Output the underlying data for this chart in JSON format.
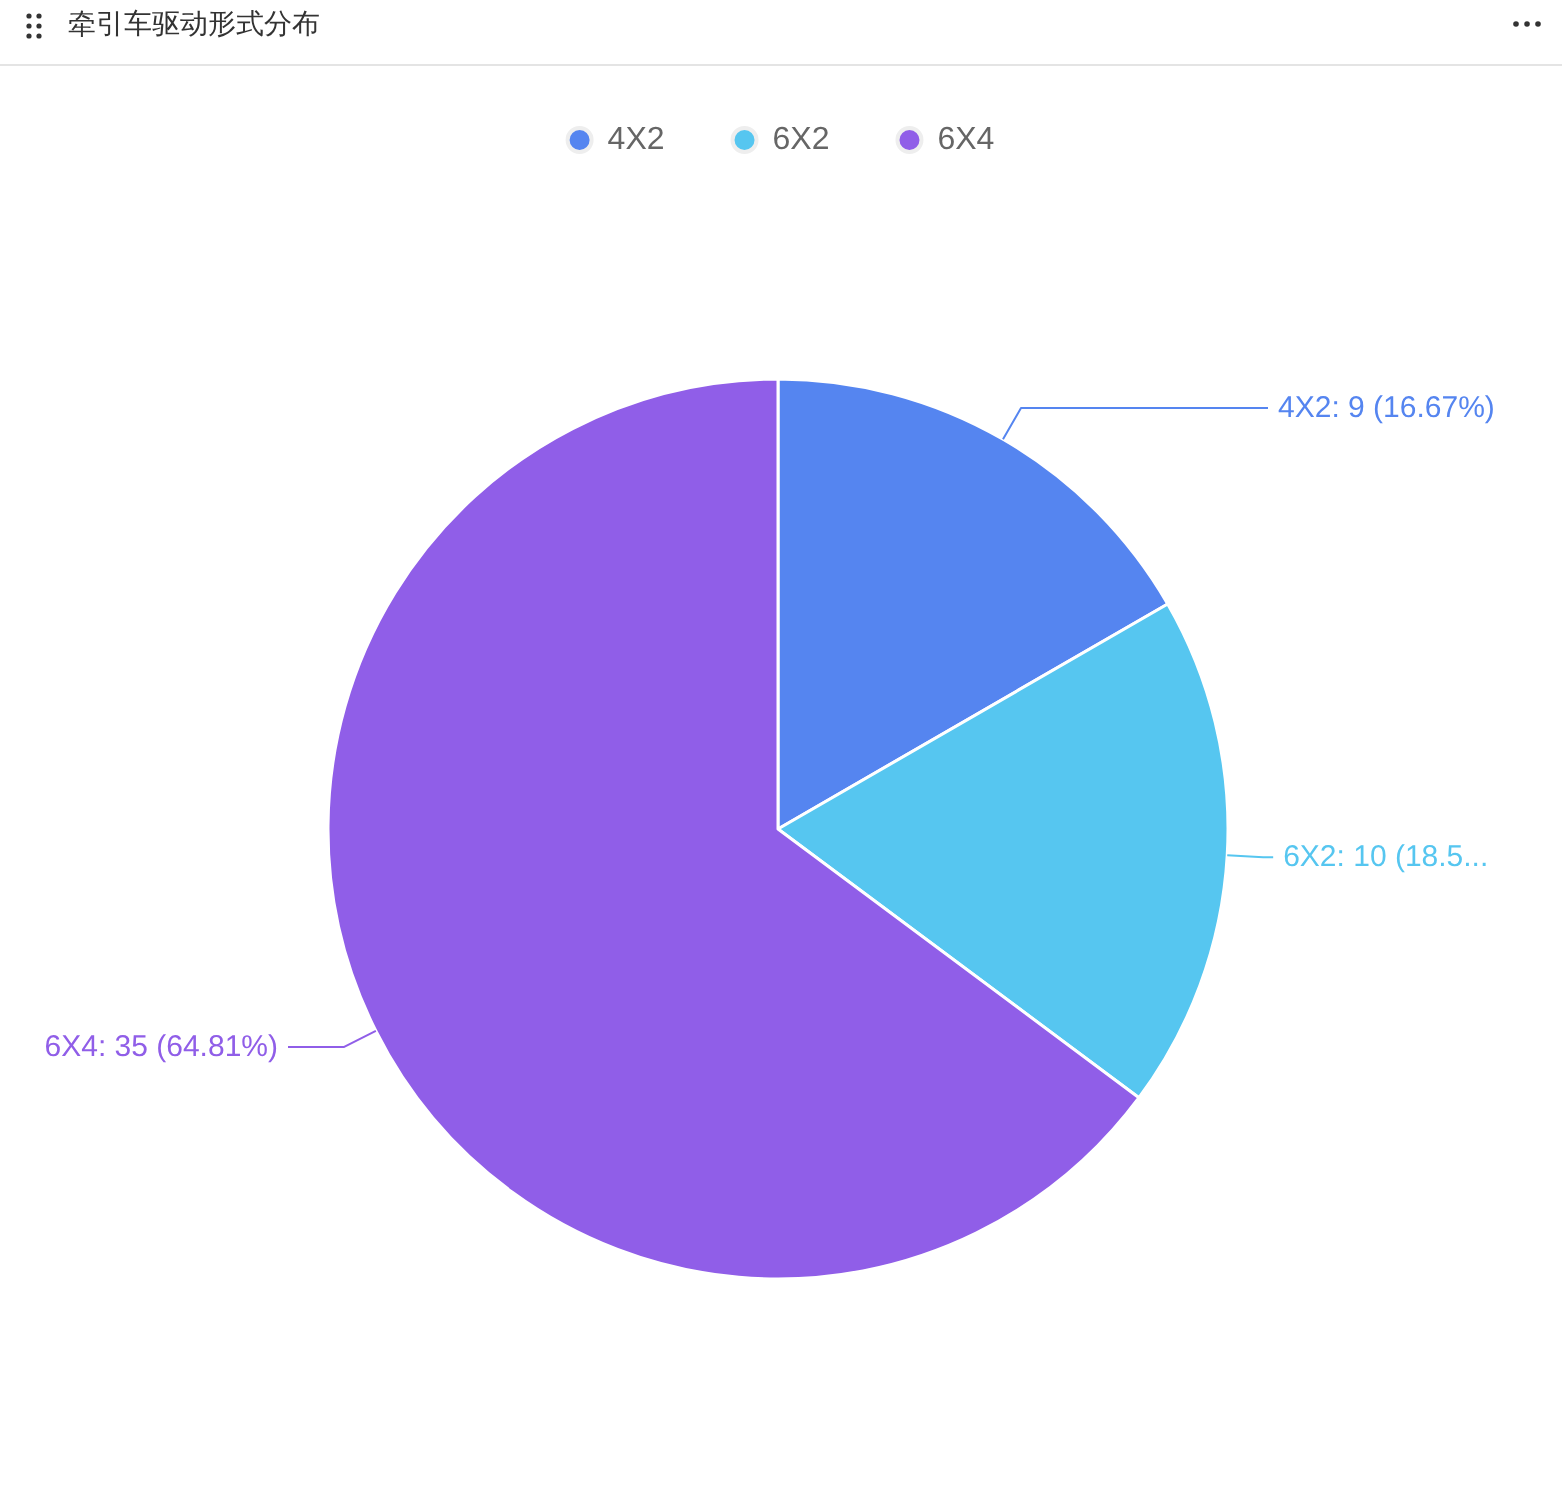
{
  "chart_data": {
    "type": "pie",
    "title": "牵引车驱动形式分布",
    "categories": [
      "4X2",
      "6X2",
      "6X4"
    ],
    "values": [
      9,
      10,
      35
    ],
    "colors": [
      "#5585f0",
      "#56c6f0",
      "#905ee8"
    ],
    "value_labels": [
      "4X2: 9 (16.67%)",
      "6X2: 10 (18.5...",
      "6X4: 35 (64.81%)"
    ],
    "legend": "top"
  }
}
